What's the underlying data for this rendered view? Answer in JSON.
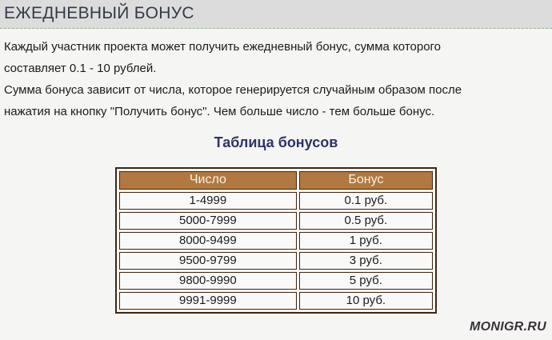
{
  "header": {
    "title": "ЕЖЕДНЕВНЫЙ БОНУС"
  },
  "content": {
    "paragraphs": [
      {
        "lines": [
          "Каждый участник проекта может получить ежедневный бонус, сумма которого",
          "составляет 0.1 - 10 рублей."
        ]
      },
      {
        "lines": [
          "Сумма бонуса зависит от числа, которое генерируется случайным образом после",
          "нажатия на кнопку \"Получить бонус\". Чем больше число - тем больше бонус."
        ]
      }
    ],
    "table_title": "Таблица бонусов"
  },
  "bonus_table": {
    "columns": [
      "Число",
      "Бонус"
    ],
    "rows": [
      [
        "1-4999",
        "0.1 руб."
      ],
      [
        "5000-7999",
        "0.5 руб."
      ],
      [
        "8000-9499",
        "1 руб."
      ],
      [
        "9500-9799",
        "3 руб."
      ],
      [
        "9800-9990",
        "5 руб."
      ],
      [
        "9991-9999",
        "10 руб."
      ]
    ]
  },
  "footer": {
    "logo": "MONIGR.RU"
  },
  "colors": {
    "header_band_bg": "#dcdcdc",
    "page_bg": "#f5f5f4",
    "dashed_divider": "#9fb592",
    "page_title_text": "#343a46",
    "table_title_text": "#2e3466",
    "table_header_bg": "#b1793f",
    "table_header_text": "#f8f3ea",
    "table_border": "#42250e",
    "cell_bg": "#f9f9f8",
    "logo_text": "#383236"
  }
}
